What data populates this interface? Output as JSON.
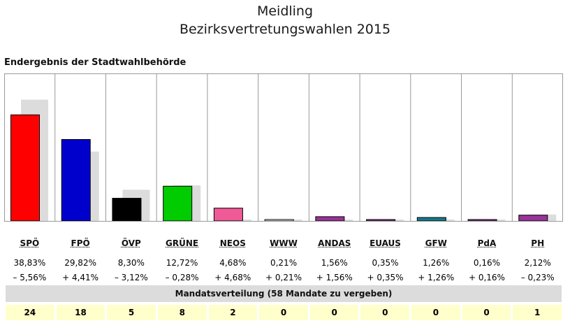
{
  "title": "Meidling",
  "subtitle": "Bezirksvertretungswahlen 2015",
  "section_title": "Endergebnis der Stadtwahlbehörde",
  "mandate_header": "Mandatsverteilung (58 Mandate zu vergeben)",
  "chart_data": {
    "type": "bar",
    "categories": [
      "SPÖ",
      "FPÖ",
      "ÖVP",
      "GRÜNE",
      "NEOS",
      "WWW",
      "ANDAS",
      "EUAUS",
      "GFW",
      "PdA",
      "PH"
    ],
    "values": [
      38.83,
      29.82,
      8.3,
      12.72,
      4.68,
      0.21,
      1.56,
      0.35,
      1.26,
      0.16,
      2.12
    ],
    "value_labels": [
      "38,83%",
      "29,82%",
      "8,30%",
      "12,72%",
      "4,68%",
      "0,21%",
      "1,56%",
      "0,35%",
      "1,26%",
      "0,16%",
      "2,12%"
    ],
    "change_labels": [
      "– 5,56%",
      "+ 4,41%",
      "– 3,12%",
      "– 0,28%",
      "+ 4,68%",
      "+ 0,21%",
      "+ 1,56%",
      "+ 0,35%",
      "+ 1,26%",
      "+ 0,16%",
      "– 0,23%"
    ],
    "previous_values": [
      44.39,
      25.41,
      11.42,
      13.0,
      0,
      0,
      0,
      0,
      0,
      0,
      2.35
    ],
    "colors": [
      "#ff0000",
      "#0000cc",
      "#000000",
      "#00cc00",
      "#f05a96",
      "#ffffff",
      "#993399",
      "#993399",
      "#137a8e",
      "#993399",
      "#993399"
    ],
    "previous_color": "#dcdcdc",
    "mandates": [
      24,
      18,
      5,
      8,
      2,
      0,
      0,
      0,
      0,
      0,
      1
    ],
    "ylim": [
      0,
      54
    ],
    "grid": "vertical separators"
  }
}
